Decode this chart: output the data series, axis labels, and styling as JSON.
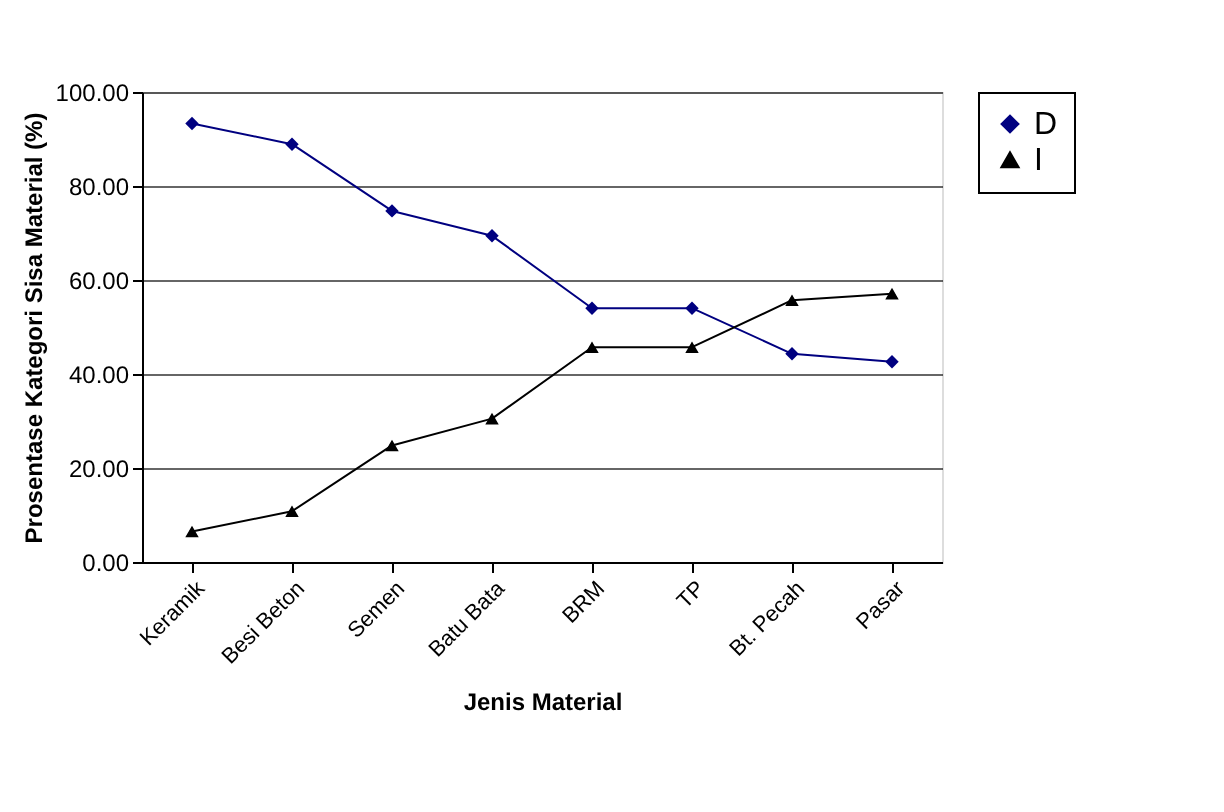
{
  "chart_data": {
    "type": "line",
    "xlabel": "Jenis Material",
    "ylabel": "Prosentase Kategori Sisa Material (%)",
    "categories": [
      "Keramik",
      "Besi Beton",
      "Semen",
      "Batu Bata",
      "BRM",
      "TP",
      "Bt. Pecah",
      "Pasar"
    ],
    "series": [
      {
        "name": "D",
        "color": "#000080",
        "marker": "diamond",
        "values": [
          93.3,
          88.9,
          74.7,
          69.4,
          54.0,
          54.0,
          44.3,
          42.6
        ]
      },
      {
        "name": "I",
        "color": "#000000",
        "marker": "triangle",
        "values": [
          6.5,
          10.8,
          24.8,
          30.5,
          45.7,
          45.7,
          55.7,
          57.1
        ]
      }
    ],
    "ylim": [
      0,
      100
    ],
    "yticks": [
      {
        "value": 0,
        "label": "0.00"
      },
      {
        "value": 20,
        "label": "20.00"
      },
      {
        "value": 40,
        "label": "40.00"
      },
      {
        "value": 60,
        "label": "60.00"
      },
      {
        "value": 80,
        "label": "80.00"
      },
      {
        "value": 100,
        "label": "100.00"
      }
    ],
    "grid": "y",
    "legend": "right"
  }
}
